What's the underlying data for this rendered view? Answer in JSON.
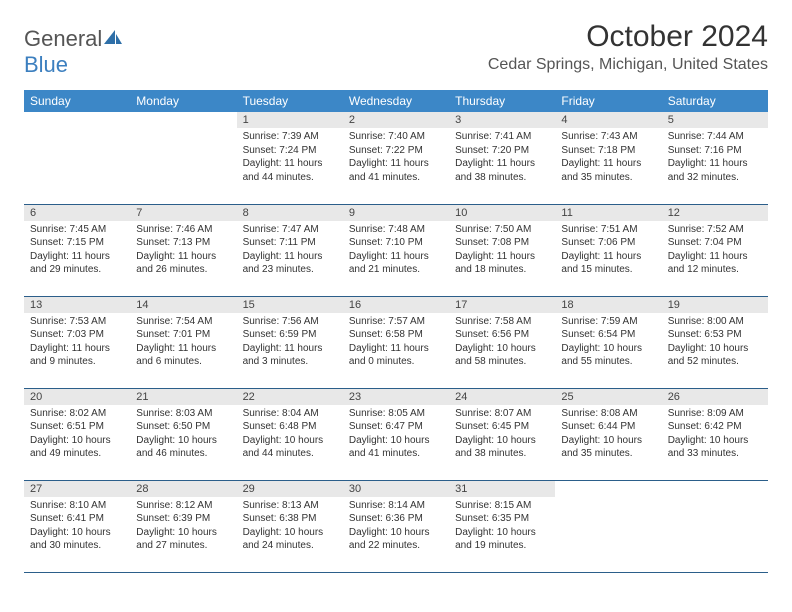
{
  "logo": {
    "word1": "General",
    "word2": "Blue"
  },
  "header": {
    "month_title": "October 2024",
    "location": "Cedar Springs, Michigan, United States"
  },
  "colors": {
    "header_row_bg": "#3c87c7",
    "header_row_text": "#ffffff",
    "daynum_bg": "#e8e8e8",
    "row_border": "#2b5e8a",
    "logo_gray": "#555555",
    "logo_blue": "#3c7fbf"
  },
  "weekdays": [
    "Sunday",
    "Monday",
    "Tuesday",
    "Wednesday",
    "Thursday",
    "Friday",
    "Saturday"
  ],
  "weeks": [
    [
      null,
      null,
      {
        "n": "1",
        "sr": "Sunrise: 7:39 AM",
        "ss": "Sunset: 7:24 PM",
        "d1": "Daylight: 11 hours",
        "d2": "and 44 minutes."
      },
      {
        "n": "2",
        "sr": "Sunrise: 7:40 AM",
        "ss": "Sunset: 7:22 PM",
        "d1": "Daylight: 11 hours",
        "d2": "and 41 minutes."
      },
      {
        "n": "3",
        "sr": "Sunrise: 7:41 AM",
        "ss": "Sunset: 7:20 PM",
        "d1": "Daylight: 11 hours",
        "d2": "and 38 minutes."
      },
      {
        "n": "4",
        "sr": "Sunrise: 7:43 AM",
        "ss": "Sunset: 7:18 PM",
        "d1": "Daylight: 11 hours",
        "d2": "and 35 minutes."
      },
      {
        "n": "5",
        "sr": "Sunrise: 7:44 AM",
        "ss": "Sunset: 7:16 PM",
        "d1": "Daylight: 11 hours",
        "d2": "and 32 minutes."
      }
    ],
    [
      {
        "n": "6",
        "sr": "Sunrise: 7:45 AM",
        "ss": "Sunset: 7:15 PM",
        "d1": "Daylight: 11 hours",
        "d2": "and 29 minutes."
      },
      {
        "n": "7",
        "sr": "Sunrise: 7:46 AM",
        "ss": "Sunset: 7:13 PM",
        "d1": "Daylight: 11 hours",
        "d2": "and 26 minutes."
      },
      {
        "n": "8",
        "sr": "Sunrise: 7:47 AM",
        "ss": "Sunset: 7:11 PM",
        "d1": "Daylight: 11 hours",
        "d2": "and 23 minutes."
      },
      {
        "n": "9",
        "sr": "Sunrise: 7:48 AM",
        "ss": "Sunset: 7:10 PM",
        "d1": "Daylight: 11 hours",
        "d2": "and 21 minutes."
      },
      {
        "n": "10",
        "sr": "Sunrise: 7:50 AM",
        "ss": "Sunset: 7:08 PM",
        "d1": "Daylight: 11 hours",
        "d2": "and 18 minutes."
      },
      {
        "n": "11",
        "sr": "Sunrise: 7:51 AM",
        "ss": "Sunset: 7:06 PM",
        "d1": "Daylight: 11 hours",
        "d2": "and 15 minutes."
      },
      {
        "n": "12",
        "sr": "Sunrise: 7:52 AM",
        "ss": "Sunset: 7:04 PM",
        "d1": "Daylight: 11 hours",
        "d2": "and 12 minutes."
      }
    ],
    [
      {
        "n": "13",
        "sr": "Sunrise: 7:53 AM",
        "ss": "Sunset: 7:03 PM",
        "d1": "Daylight: 11 hours",
        "d2": "and 9 minutes."
      },
      {
        "n": "14",
        "sr": "Sunrise: 7:54 AM",
        "ss": "Sunset: 7:01 PM",
        "d1": "Daylight: 11 hours",
        "d2": "and 6 minutes."
      },
      {
        "n": "15",
        "sr": "Sunrise: 7:56 AM",
        "ss": "Sunset: 6:59 PM",
        "d1": "Daylight: 11 hours",
        "d2": "and 3 minutes."
      },
      {
        "n": "16",
        "sr": "Sunrise: 7:57 AM",
        "ss": "Sunset: 6:58 PM",
        "d1": "Daylight: 11 hours",
        "d2": "and 0 minutes."
      },
      {
        "n": "17",
        "sr": "Sunrise: 7:58 AM",
        "ss": "Sunset: 6:56 PM",
        "d1": "Daylight: 10 hours",
        "d2": "and 58 minutes."
      },
      {
        "n": "18",
        "sr": "Sunrise: 7:59 AM",
        "ss": "Sunset: 6:54 PM",
        "d1": "Daylight: 10 hours",
        "d2": "and 55 minutes."
      },
      {
        "n": "19",
        "sr": "Sunrise: 8:00 AM",
        "ss": "Sunset: 6:53 PM",
        "d1": "Daylight: 10 hours",
        "d2": "and 52 minutes."
      }
    ],
    [
      {
        "n": "20",
        "sr": "Sunrise: 8:02 AM",
        "ss": "Sunset: 6:51 PM",
        "d1": "Daylight: 10 hours",
        "d2": "and 49 minutes."
      },
      {
        "n": "21",
        "sr": "Sunrise: 8:03 AM",
        "ss": "Sunset: 6:50 PM",
        "d1": "Daylight: 10 hours",
        "d2": "and 46 minutes."
      },
      {
        "n": "22",
        "sr": "Sunrise: 8:04 AM",
        "ss": "Sunset: 6:48 PM",
        "d1": "Daylight: 10 hours",
        "d2": "and 44 minutes."
      },
      {
        "n": "23",
        "sr": "Sunrise: 8:05 AM",
        "ss": "Sunset: 6:47 PM",
        "d1": "Daylight: 10 hours",
        "d2": "and 41 minutes."
      },
      {
        "n": "24",
        "sr": "Sunrise: 8:07 AM",
        "ss": "Sunset: 6:45 PM",
        "d1": "Daylight: 10 hours",
        "d2": "and 38 minutes."
      },
      {
        "n": "25",
        "sr": "Sunrise: 8:08 AM",
        "ss": "Sunset: 6:44 PM",
        "d1": "Daylight: 10 hours",
        "d2": "and 35 minutes."
      },
      {
        "n": "26",
        "sr": "Sunrise: 8:09 AM",
        "ss": "Sunset: 6:42 PM",
        "d1": "Daylight: 10 hours",
        "d2": "and 33 minutes."
      }
    ],
    [
      {
        "n": "27",
        "sr": "Sunrise: 8:10 AM",
        "ss": "Sunset: 6:41 PM",
        "d1": "Daylight: 10 hours",
        "d2": "and 30 minutes."
      },
      {
        "n": "28",
        "sr": "Sunrise: 8:12 AM",
        "ss": "Sunset: 6:39 PM",
        "d1": "Daylight: 10 hours",
        "d2": "and 27 minutes."
      },
      {
        "n": "29",
        "sr": "Sunrise: 8:13 AM",
        "ss": "Sunset: 6:38 PM",
        "d1": "Daylight: 10 hours",
        "d2": "and 24 minutes."
      },
      {
        "n": "30",
        "sr": "Sunrise: 8:14 AM",
        "ss": "Sunset: 6:36 PM",
        "d1": "Daylight: 10 hours",
        "d2": "and 22 minutes."
      },
      {
        "n": "31",
        "sr": "Sunrise: 8:15 AM",
        "ss": "Sunset: 6:35 PM",
        "d1": "Daylight: 10 hours",
        "d2": "and 19 minutes."
      },
      null,
      null
    ]
  ]
}
